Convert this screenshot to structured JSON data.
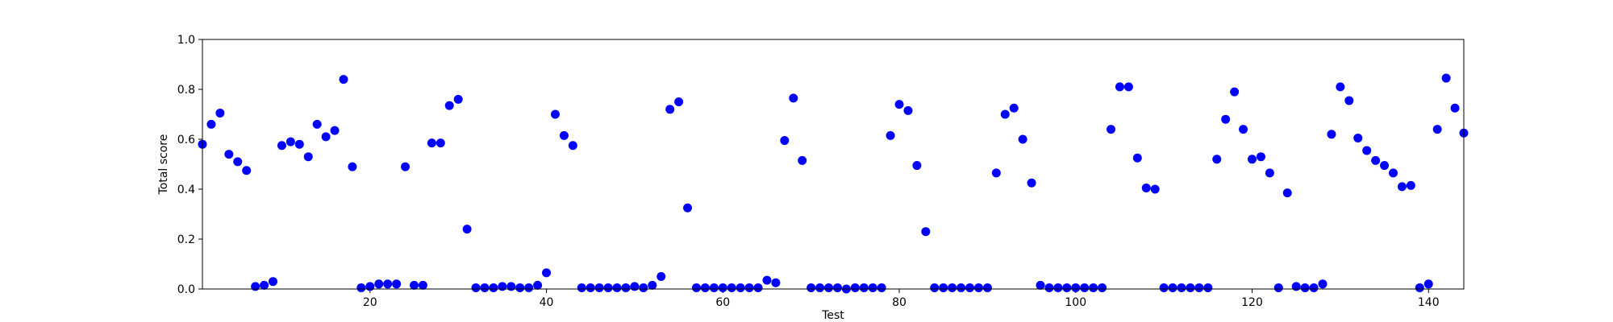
{
  "chart_data": {
    "type": "scatter",
    "xlabel": "Test",
    "ylabel": "Total score",
    "xlim": [
      1,
      144
    ],
    "ylim": [
      0.0,
      1.0
    ],
    "xticks": [
      20,
      40,
      60,
      80,
      100,
      120,
      140
    ],
    "yticks": [
      0.0,
      0.2,
      0.4,
      0.6,
      0.8,
      1.0
    ],
    "ytick_labels": [
      "0.0",
      "0.2",
      "0.4",
      "0.6",
      "0.8",
      "1.0"
    ],
    "grid": false,
    "marker_color": "#0000ff",
    "series": [
      {
        "x": [
          1,
          2,
          3,
          4,
          5,
          6,
          7,
          8,
          9,
          10,
          11,
          12,
          13,
          14,
          15,
          16,
          17,
          18,
          19,
          20,
          21,
          22,
          23,
          24,
          25,
          26,
          27,
          28,
          29,
          30,
          31,
          32,
          33,
          34,
          35,
          36,
          37,
          38,
          39,
          40,
          41,
          42,
          43,
          44,
          45,
          46,
          47,
          48,
          49,
          50,
          51,
          52,
          53,
          54,
          55,
          56,
          57,
          58,
          59,
          60,
          61,
          62,
          63,
          64,
          65,
          66,
          67,
          68,
          69,
          70,
          71,
          72,
          73,
          74,
          75,
          76,
          77,
          78,
          79,
          80,
          81,
          82,
          83,
          84,
          85,
          86,
          87,
          88,
          89,
          90,
          91,
          92,
          93,
          94,
          95,
          96,
          97,
          98,
          99,
          100,
          101,
          102,
          103,
          104,
          105,
          106,
          107,
          108,
          109,
          110,
          111,
          112,
          113,
          114,
          115,
          116,
          117,
          118,
          119,
          120,
          121,
          122,
          123,
          124,
          125,
          126,
          127,
          128,
          129,
          130,
          131,
          132,
          133,
          134,
          135,
          136,
          137,
          138,
          139,
          140,
          141,
          142,
          143,
          144
        ],
        "y": [
          0.58,
          0.66,
          0.705,
          0.54,
          0.51,
          0.475,
          0.01,
          0.015,
          0.03,
          0.575,
          0.59,
          0.58,
          0.53,
          0.66,
          0.61,
          0.635,
          0.84,
          0.49,
          0.005,
          0.01,
          0.02,
          0.02,
          0.02,
          0.49,
          0.015,
          0.015,
          0.585,
          0.585,
          0.735,
          0.76,
          0.24,
          0.005,
          0.005,
          0.005,
          0.01,
          0.01,
          0.005,
          0.005,
          0.015,
          0.065,
          0.7,
          0.615,
          0.575,
          0.005,
          0.005,
          0.005,
          0.005,
          0.005,
          0.005,
          0.01,
          0.005,
          0.015,
          0.05,
          0.72,
          0.75,
          0.325,
          0.005,
          0.005,
          0.005,
          0.005,
          0.005,
          0.005,
          0.005,
          0.005,
          0.035,
          0.025,
          0.595,
          0.765,
          0.515,
          0.005,
          0.005,
          0.005,
          0.005,
          0.0,
          0.005,
          0.005,
          0.005,
          0.005,
          0.615,
          0.74,
          0.715,
          0.495,
          0.23,
          0.005,
          0.005,
          0.005,
          0.005,
          0.005,
          0.005,
          0.005,
          0.465,
          0.7,
          0.725,
          0.6,
          0.425,
          0.015,
          0.005,
          0.005,
          0.005,
          0.005,
          0.005,
          0.005,
          0.005,
          0.64,
          0.81,
          0.81,
          0.525,
          0.405,
          0.4,
          0.005,
          0.005,
          0.005,
          0.005,
          0.005,
          0.005,
          0.52,
          0.68,
          0.79,
          0.64,
          0.52,
          0.53,
          0.465,
          0.005,
          0.385,
          0.01,
          0.005,
          0.005,
          0.02,
          0.62,
          0.81,
          0.755,
          0.605,
          0.555,
          0.515,
          0.495,
          0.465,
          0.41,
          0.415,
          0.005,
          0.02,
          0.64,
          0.845,
          0.725,
          0.625
        ]
      }
    ]
  }
}
